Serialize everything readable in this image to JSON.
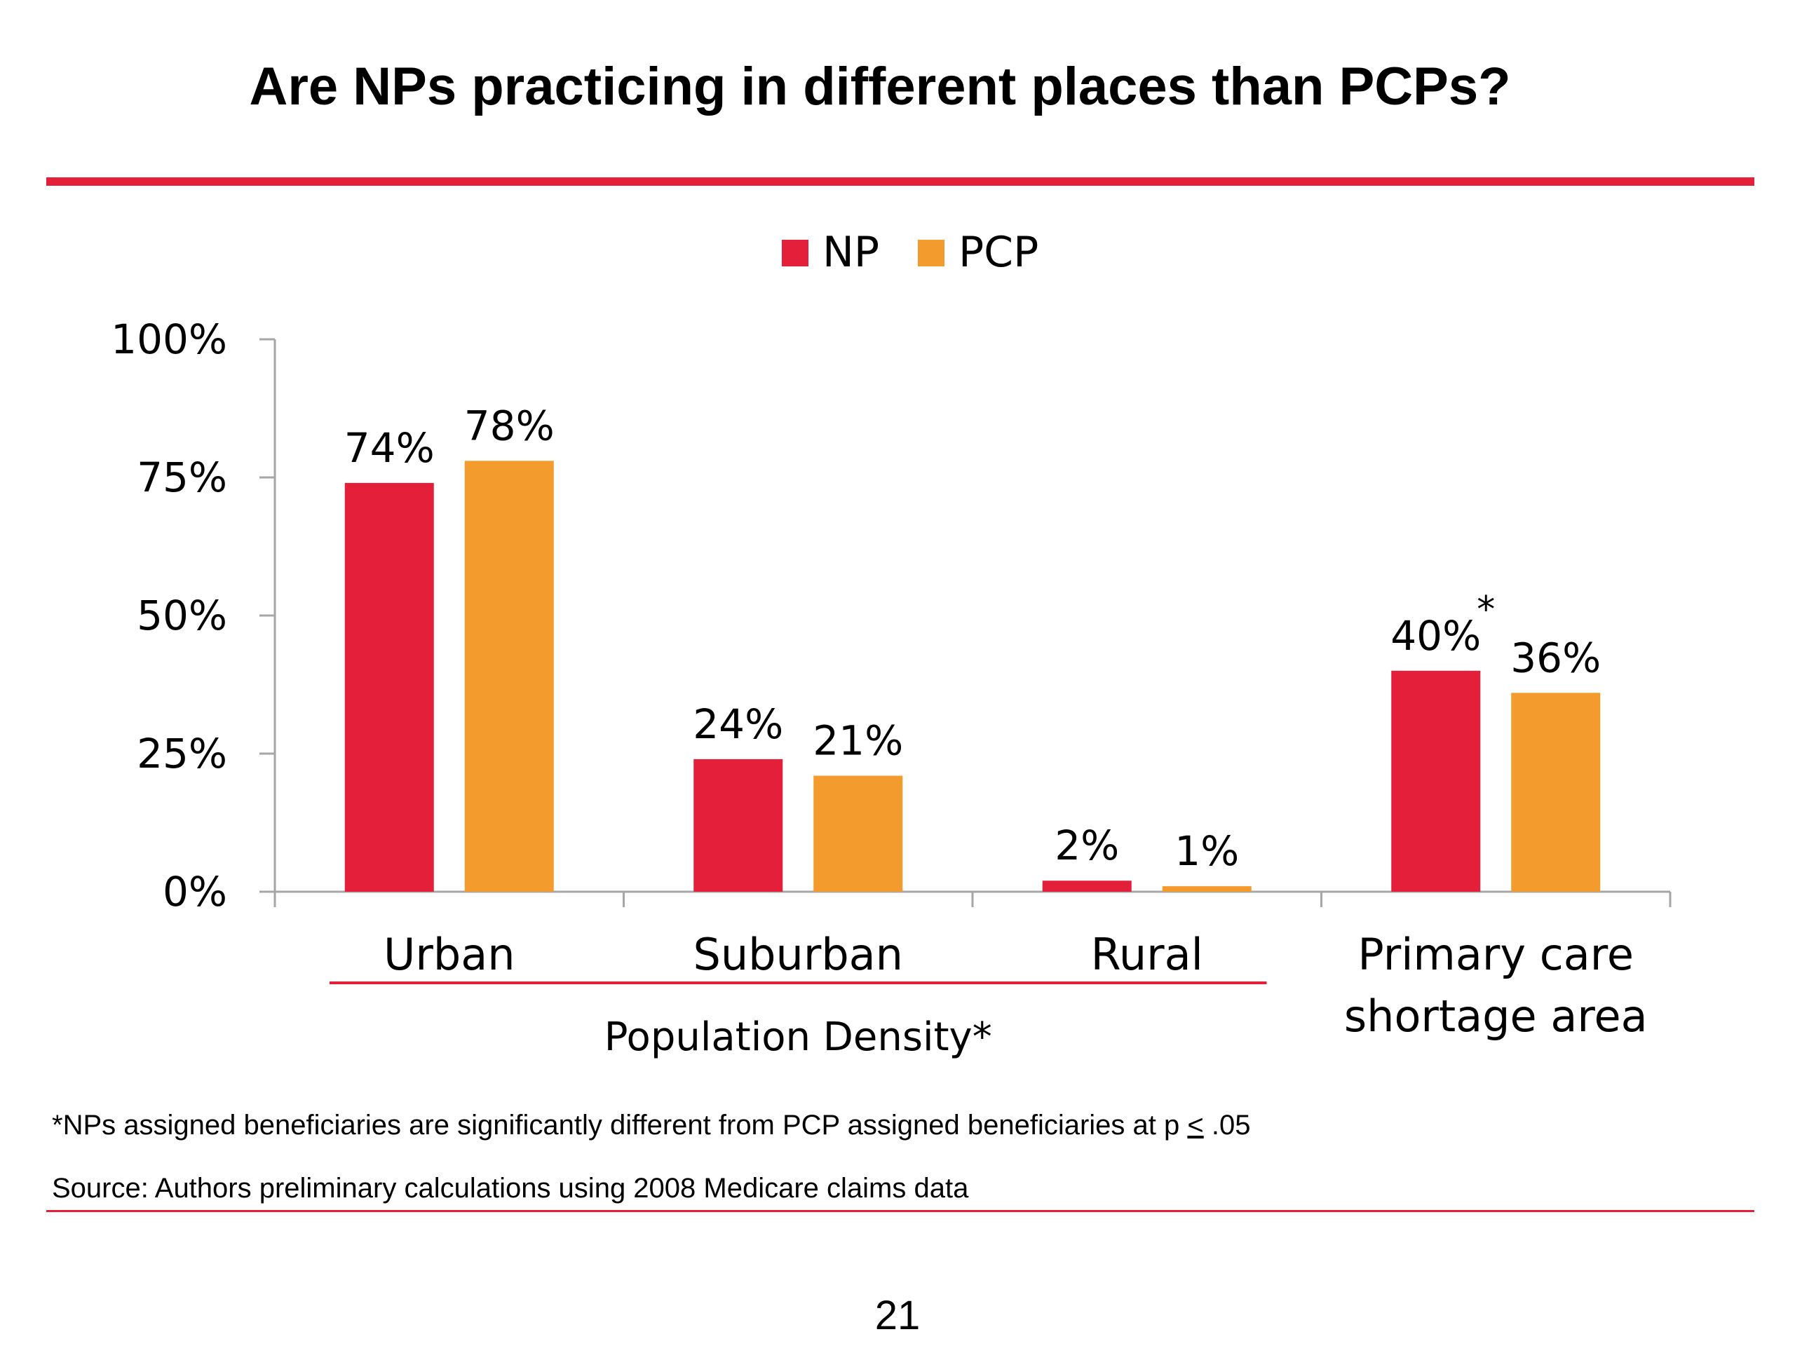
{
  "slide": {
    "title": "Are NPs practicing in different places than PCPs?",
    "footnote_prefix": "*NPs assigned beneficiaries are significantly different from PCP assigned beneficiaries at p ",
    "footnote_symbol": "<",
    "footnote_value": " .05",
    "source": "Source: Authors preliminary calculations using 2008 Medicare claims data",
    "page_number": "21",
    "accent_color": "#e41f3a"
  },
  "chart_data": {
    "type": "bar",
    "categories": [
      "Urban",
      "Suburban",
      "Rural",
      "Primary care shortage area"
    ],
    "category_lines": [
      [
        "Urban"
      ],
      [
        "Suburban"
      ],
      [
        "Rural"
      ],
      [
        "Primary care",
        "shortage area"
      ]
    ],
    "series": [
      {
        "name": "NP",
        "values": [
          74,
          24,
          2,
          40
        ],
        "labels": [
          "74%",
          "24%",
          "2%",
          "40%"
        ],
        "color": "#e41f3a"
      },
      {
        "name": "PCP",
        "values": [
          78,
          21,
          1,
          36
        ],
        "labels": [
          "78%",
          "21%",
          "1%",
          "36%"
        ],
        "color": "#f39b2d"
      }
    ],
    "ylim": [
      0,
      100
    ],
    "yticks": [
      0,
      25,
      50,
      75,
      100
    ],
    "ytick_labels": [
      "0%",
      "25%",
      "50%",
      "75%",
      "100%"
    ],
    "legend_placement": "top-center",
    "grid": false,
    "group_label": "Population Density*",
    "group_categories": [
      "Urban",
      "Suburban",
      "Rural"
    ],
    "annotations": [
      {
        "series": "NP",
        "category": "Primary care shortage area",
        "text": "*"
      }
    ]
  }
}
